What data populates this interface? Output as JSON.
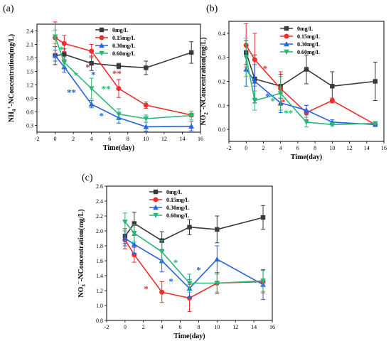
{
  "chart_data": [
    {
      "type": "line",
      "panel_label": "(a)",
      "xlabel": "Time(day)",
      "ylabel": "NH4+-NConcentration(mg/L)",
      "ylabel_parts": [
        "NH",
        "4",
        "+",
        "-NConcentration(mg/L)"
      ],
      "xlim": [
        -2,
        16
      ],
      "ylim": [
        0.15,
        2.55
      ],
      "xticks": [
        -2,
        0,
        2,
        4,
        6,
        8,
        10,
        12,
        14,
        16
      ],
      "yticks": [
        0.3,
        0.6,
        0.9,
        1.2,
        1.5,
        1.8,
        2.1,
        2.4
      ],
      "ytick_labels": [
        "0.3",
        "0.6",
        "0.9",
        "1.2",
        "1.5",
        "1.8",
        "2.1",
        "2.4"
      ],
      "legend_position": "top-right",
      "x": [
        0,
        1,
        4,
        7,
        10,
        15
      ],
      "series": [
        {
          "name": "0mg/L",
          "color": "#3a3a3a",
          "marker": "square",
          "values": [
            1.85,
            1.88,
            1.68,
            1.62,
            1.58,
            1.92
          ],
          "errors": [
            0.2,
            0.12,
            0.16,
            0.06,
            0.15,
            0.24
          ]
        },
        {
          "name": "0.15mg/L",
          "color": "#e8302e",
          "marker": "circle",
          "values": [
            2.25,
            2.12,
            1.95,
            1.12,
            0.75,
            0.53
          ],
          "errors": [
            0.35,
            0.18,
            0.15,
            0.2,
            0.07,
            0.04
          ]
        },
        {
          "name": "0.30mg/L",
          "color": "#2563e0",
          "marker": "triangle-up",
          "values": [
            1.85,
            1.6,
            0.77,
            0.47,
            0.27,
            0.28
          ],
          "errors": [
            0.12,
            0.12,
            0.08,
            0.12,
            0.1,
            0.1
          ]
        },
        {
          "name": "0.60mg/L",
          "color": "#2bb673",
          "marker": "triangle-down",
          "values": [
            2.27,
            1.7,
            1.12,
            0.55,
            0.45,
            0.52
          ],
          "errors": [
            0.15,
            0.1,
            0.23,
            0.12,
            0.08,
            0.1
          ]
        }
      ],
      "annotations": [
        {
          "text": "*",
          "x": 0.7,
          "y": 2.0,
          "color": "#2bb673"
        },
        {
          "text": "*",
          "x": 2.3,
          "y": 1.42,
          "color": "#2bb673"
        },
        {
          "text": "*",
          "x": 3.6,
          "y": 1.6,
          "color": "#e8302e"
        },
        {
          "text": "*",
          "x": 4.2,
          "y": 1.44,
          "color": "#2563e0"
        },
        {
          "text": "**",
          "x": 5.6,
          "y": 1.12,
          "color": "#2bb673"
        },
        {
          "text": "**",
          "x": 6.8,
          "y": 1.46,
          "color": "#e8302e"
        },
        {
          "text": "**",
          "x": 1.8,
          "y": 1.04,
          "color": "#2563e0"
        },
        {
          "text": "*",
          "x": 5.1,
          "y": 0.52,
          "color": "#2563e0"
        }
      ]
    },
    {
      "type": "line",
      "panel_label": "(b)",
      "xlabel": "Time(day)",
      "ylabel": "NO2−-NConcentration(mg/L)",
      "ylabel_parts": [
        "NO",
        "2",
        "−",
        "-NConcentration(mg/L)"
      ],
      "xlim": [
        -2,
        16
      ],
      "ylim": [
        -0.05,
        0.45
      ],
      "xticks": [
        -2,
        0,
        2,
        4,
        6,
        8,
        10,
        12,
        14,
        16
      ],
      "yticks": [
        0.0,
        0.1,
        0.2,
        0.3,
        0.4
      ],
      "ytick_labels": [
        "0.0",
        "0.1",
        "0.2",
        "0.3",
        "0.4"
      ],
      "legend_position": "top-right",
      "x": [
        0,
        1,
        4,
        7,
        10,
        15
      ],
      "series": [
        {
          "name": "0mg/L",
          "color": "#3a3a3a",
          "marker": "square",
          "values": [
            0.32,
            0.21,
            0.18,
            0.25,
            0.18,
            0.2
          ],
          "errors": [
            0.05,
            0.1,
            0.05,
            0.06,
            0.06,
            0.08
          ]
        },
        {
          "name": "0.15mg/L",
          "color": "#e8302e",
          "marker": "circle",
          "values": [
            0.35,
            0.29,
            0.17,
            0.07,
            0.12,
            0.02
          ],
          "errors": [
            0.09,
            0.11,
            0.07,
            0.03,
            0.01,
            0.005
          ]
        },
        {
          "name": "0.30mg/L",
          "color": "#2563e0",
          "marker": "triangle-up",
          "values": [
            0.25,
            0.2,
            0.11,
            0.08,
            0.03,
            0.02
          ],
          "errors": [
            0.07,
            0.07,
            0.04,
            0.02,
            0.01,
            0.005
          ]
        },
        {
          "name": "0.60mg/L",
          "color": "#2bb673",
          "marker": "triangle-down",
          "values": [
            0.3,
            0.12,
            0.15,
            0.03,
            0.02,
            0.025
          ],
          "errors": [
            0.08,
            0.04,
            0.07,
            0.02,
            0.005,
            0.005
          ]
        }
      ],
      "annotations": [
        {
          "text": "*",
          "x": 2.2,
          "y": 0.255,
          "color": "#e8302e"
        },
        {
          "text": "*",
          "x": 2.5,
          "y": 0.14,
          "color": "#2563e0"
        },
        {
          "text": "*",
          "x": 3.1,
          "y": 0.12,
          "color": "#2bb673"
        },
        {
          "text": "*",
          "x": 4.3,
          "y": 0.115,
          "color": "#e8302e"
        },
        {
          "text": "**",
          "x": 4.9,
          "y": 0.07,
          "color": "#2bb673"
        }
      ]
    },
    {
      "type": "line",
      "panel_label": "(c)",
      "xlabel": "Time(day)",
      "ylabel": "NO3−-NConcentration(mg/L)",
      "ylabel_parts": [
        "NO",
        "3",
        "−",
        "-NConcentration(mg/L)"
      ],
      "xlim": [
        -2,
        16
      ],
      "ylim": [
        0.8,
        2.6
      ],
      "xticks": [
        -2,
        0,
        2,
        4,
        6,
        8,
        10,
        12,
        14,
        16
      ],
      "yticks": [
        0.8,
        1.0,
        1.2,
        1.4,
        1.6,
        1.8,
        2.0,
        2.2,
        2.4,
        2.6
      ],
      "ytick_labels": [
        "0.8",
        "1.0",
        "1.2",
        "1.4",
        "1.6",
        "1.8",
        "2.0",
        "2.2",
        "2.4",
        "2.6"
      ],
      "legend_position": "top-right",
      "x": [
        0,
        1,
        4,
        7,
        10,
        15
      ],
      "series": [
        {
          "name": "0mg/L",
          "color": "#3a3a3a",
          "marker": "square",
          "values": [
            1.93,
            2.1,
            1.87,
            2.05,
            2.02,
            2.18
          ],
          "errors": [
            0.1,
            0.15,
            0.12,
            0.1,
            0.18,
            0.16
          ]
        },
        {
          "name": "0.15mg/L",
          "color": "#e8302e",
          "marker": "circle",
          "values": [
            1.88,
            1.68,
            1.18,
            1.1,
            1.3,
            1.32
          ],
          "errors": [
            0.12,
            0.1,
            0.14,
            0.18,
            0.14,
            0.15
          ]
        },
        {
          "name": "0.30mg/L",
          "color": "#2563e0",
          "marker": "triangle-up",
          "values": [
            1.9,
            1.82,
            1.6,
            1.23,
            1.62,
            1.28
          ],
          "errors": [
            0.1,
            0.12,
            0.15,
            0.12,
            0.18,
            0.2
          ]
        },
        {
          "name": "0.60mg/L",
          "color": "#2bb673",
          "marker": "triangle-down",
          "values": [
            2.12,
            1.97,
            1.72,
            1.3,
            1.3,
            1.33
          ],
          "errors": [
            0.12,
            0.12,
            0.15,
            0.12,
            0.12,
            0.14
          ]
        }
      ],
      "annotations": [
        {
          "text": "*",
          "x": 2.3,
          "y": 1.23,
          "color": "#e8302e"
        },
        {
          "text": "*",
          "x": 5.0,
          "y": 1.33,
          "color": "#2563e0"
        },
        {
          "text": "*",
          "x": 5.5,
          "y": 1.58,
          "color": "#2bb673"
        },
        {
          "text": "*",
          "x": 8.0,
          "y": 1.48,
          "color": "#2563e0"
        }
      ]
    }
  ]
}
